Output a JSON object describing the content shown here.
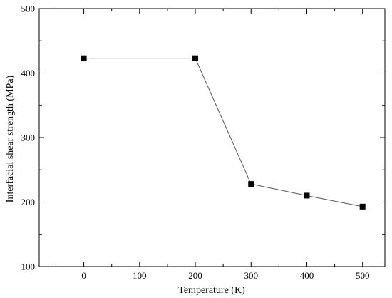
{
  "chart_data": {
    "type": "line",
    "title": "",
    "xlabel": "Temperature (K)",
    "ylabel": "Interfacial shear strength (MPa)",
    "xlim": [
      -80,
      540
    ],
    "ylim": [
      100,
      500
    ],
    "xticks": [
      0,
      100,
      200,
      300,
      400,
      500
    ],
    "yticks": [
      100,
      200,
      300,
      400,
      500
    ],
    "xtick_labels": [
      "0",
      "100",
      "200",
      "300",
      "400",
      "500"
    ],
    "ytick_labels": [
      "100",
      "200",
      "300",
      "400",
      "500"
    ],
    "grid": false,
    "marker": "square",
    "colors": {
      "line": "#555555",
      "marker": "#000000",
      "axis": "#000000"
    },
    "series": [
      {
        "x": [
          0,
          200,
          300,
          400,
          500
        ],
        "y": [
          423,
          423,
          228,
          210,
          193
        ]
      }
    ]
  }
}
